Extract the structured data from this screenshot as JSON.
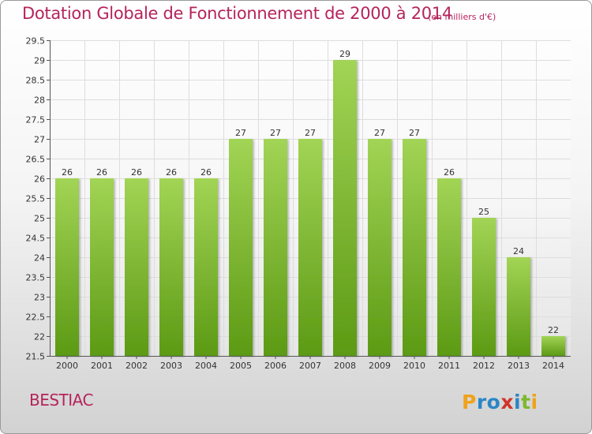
{
  "header": {
    "title": "Dotation Globale de Fonctionnement de 2000 à 2014",
    "subtitle": "(en milliers d'€)"
  },
  "footer": {
    "commune": "BESTIAC",
    "logo_text": "Proxiti"
  },
  "colors": {
    "title": "#b5245c",
    "bar_top": "#a2d455",
    "bar_bottom": "#5c9a14",
    "grid": "#dddddd",
    "axis": "#555555"
  },
  "chart_data": {
    "type": "bar",
    "categories": [
      "2000",
      "2001",
      "2002",
      "2003",
      "2004",
      "2005",
      "2006",
      "2007",
      "2008",
      "2009",
      "2010",
      "2011",
      "2012",
      "2013",
      "2014"
    ],
    "values": [
      26,
      26,
      26,
      26,
      26,
      27,
      27,
      27,
      29,
      27,
      27,
      26,
      25,
      24,
      22
    ],
    "data_labels": [
      "26",
      "26",
      "26",
      "26",
      "26",
      "27",
      "27",
      "27",
      "29",
      "27",
      "27",
      "26",
      "25",
      "24",
      "22"
    ],
    "title": "Dotation Globale de Fonctionnement de 2000 à 2014",
    "subtitle": "(en milliers d'€)",
    "xlabel": "",
    "ylabel": "",
    "ylim": [
      21.5,
      29.5
    ],
    "yticks": [
      21.5,
      22,
      22.5,
      23,
      23.5,
      24,
      24.5,
      25,
      25.5,
      26,
      26.5,
      27,
      27.5,
      28,
      28.5,
      29,
      29.5
    ],
    "ytick_labels": [
      "21.5",
      "22",
      "22.5",
      "23",
      "23.5",
      "24",
      "24.5",
      "25",
      "25.5",
      "26",
      "26.5",
      "27",
      "27.5",
      "28",
      "28.5",
      "29",
      "29.5"
    ],
    "grid": true,
    "legend": "none"
  }
}
